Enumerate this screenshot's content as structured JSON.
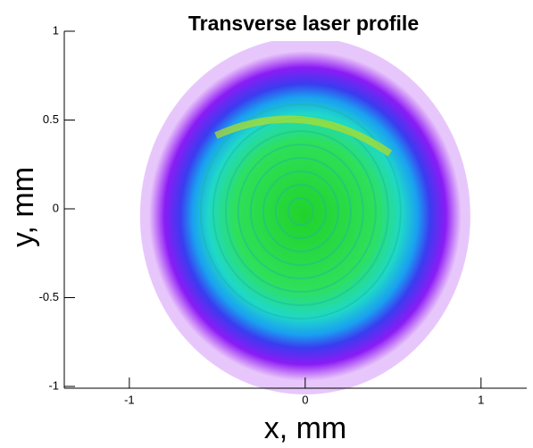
{
  "chart_data": {
    "type": "heatmap",
    "title": "Transverse laser profile",
    "x_label": "x, mm",
    "y_label": "y, mm",
    "xlim": [
      -1.37,
      1.26
    ],
    "ylim": [
      -1.01,
      1.0
    ],
    "xticks": [
      -1,
      0,
      1
    ],
    "yticks": [
      -1,
      -0.5,
      0,
      0.5,
      1
    ]
  }
}
